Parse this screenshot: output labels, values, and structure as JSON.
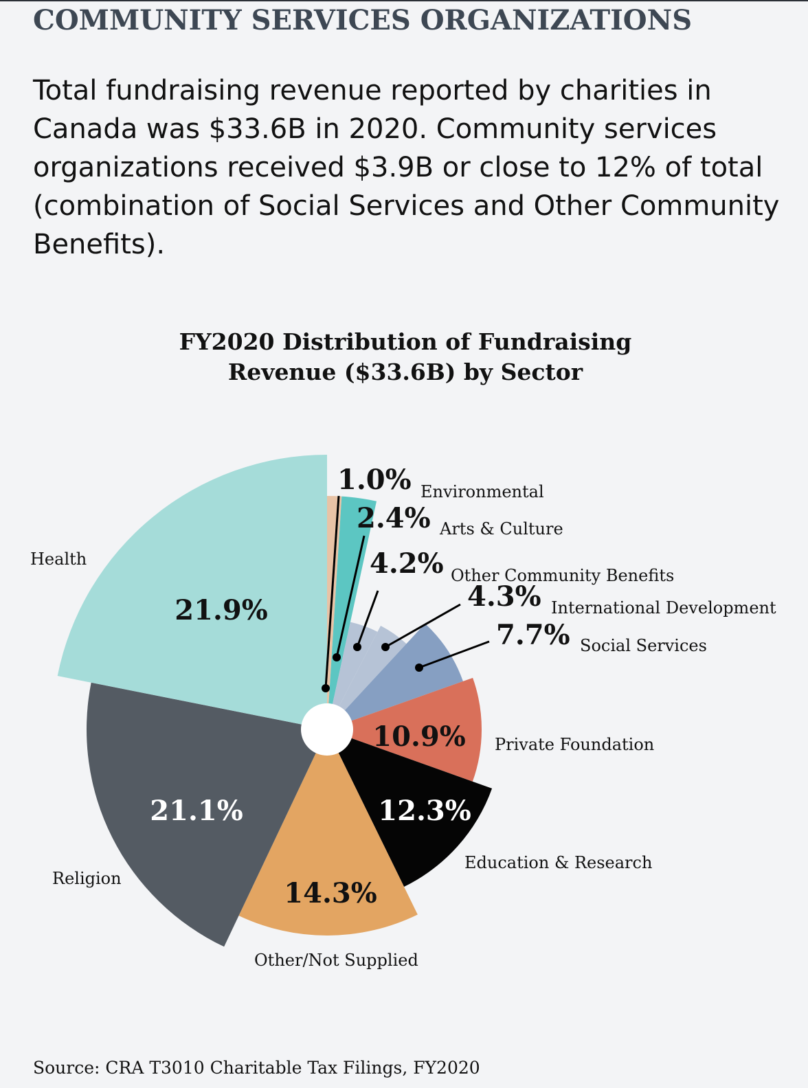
{
  "header": {
    "title": "COMMUNITY SERVICES ORGANIZATIONS",
    "intro": "Total fundraising revenue reported by charities in Canada was $33.6B in 2020. Community services organizations received $3.9B or close to 12% of total (combination of Social Services and Other Community Benefits)."
  },
  "chart_data": {
    "type": "pie",
    "title": "FY2020 Distribution of Fundraising Revenue ($33.6B) by Sector",
    "unit": "%",
    "legend": "none (labels placed beside slices)",
    "slices": [
      {
        "label": "Environmental",
        "value": 1.0,
        "value_label": "1.0%",
        "color": "#e8c3a6"
      },
      {
        "label": "Arts & Culture",
        "value": 2.4,
        "value_label": "2.4%",
        "color": "#5cc6c2"
      },
      {
        "label": "Other Community Benefits",
        "value": 4.2,
        "value_label": "4.2%",
        "color": "#b6c3d6"
      },
      {
        "label": "International Development",
        "value": 4.3,
        "value_label": "4.3%",
        "color": "#b6c3d6"
      },
      {
        "label": "Social Services",
        "value": 7.7,
        "value_label": "7.7%",
        "color": "#869fc2"
      },
      {
        "label": "Private Foundation",
        "value": 10.9,
        "value_label": "10.9%",
        "color": "#d9705a"
      },
      {
        "label": "Education & Research",
        "value": 12.3,
        "value_label": "12.3%",
        "color": "#050505"
      },
      {
        "label": "Other/Not Supplied",
        "value": 14.3,
        "value_label": "14.3%",
        "color": "#e3a562"
      },
      {
        "label": "Religion",
        "value": 21.1,
        "value_label": "21.1%",
        "color": "#545b63"
      },
      {
        "label": "Health",
        "value": 21.9,
        "value_label": "21.9%",
        "color": "#a5dcd9"
      }
    ]
  },
  "footer": {
    "source": "Source: CRA T3010 Charitable Tax Filings, FY2020"
  }
}
